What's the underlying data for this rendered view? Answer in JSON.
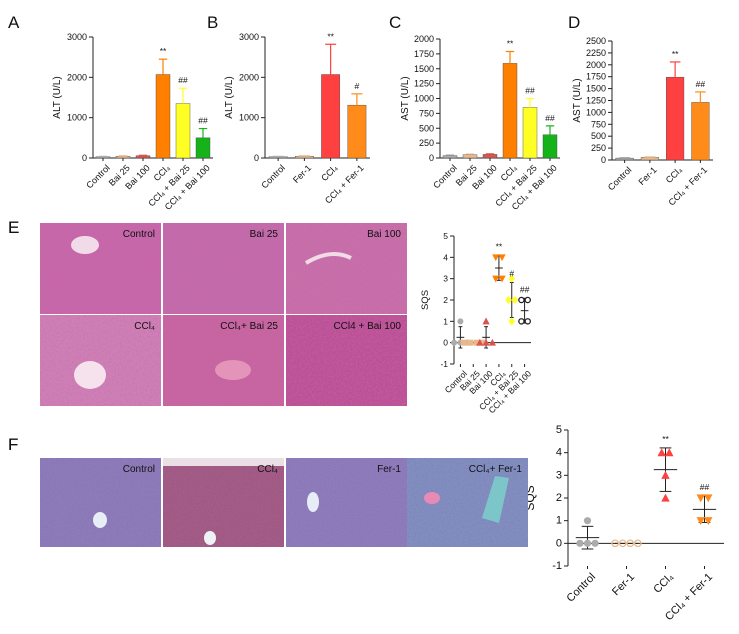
{
  "figure": {
    "colors": {
      "control": "#ababab",
      "bai25": "#e8b98e",
      "bai100": "#d9534f",
      "ccl4": "#ff7f00",
      "ccl4_bai25": "#ffff26",
      "ccl4_bai100": "#16b21a",
      "fer_ccl4": "#ff4040",
      "fer_ccl4_fer": "#ff8c1a",
      "he_stain": "#c65f9a",
      "masson_stain": "#8f79b5"
    },
    "panel_E": {
      "letter": "E",
      "images": [
        {
          "label": "Control"
        },
        {
          "label": "Bai 25"
        },
        {
          "label": "Bai 100"
        },
        {
          "label": "CCl₄"
        },
        {
          "label": "CCl₄+ Bai 25"
        },
        {
          "label": "CCl4 + Bai 100"
        }
      ]
    },
    "panel_F": {
      "letter": "F",
      "images": [
        {
          "label": "Control"
        },
        {
          "label": "CCl₄"
        },
        {
          "label": "Fer-1"
        },
        {
          "label": "CCl₄+ Fer-1"
        }
      ]
    }
  },
  "chart_data": [
    {
      "panel": "A",
      "type": "bar",
      "ylabel": "ALT (U/L)",
      "ylim": [
        0,
        3000
      ],
      "yticks": [
        0,
        1000,
        2000,
        3000
      ],
      "categories": [
        "Control",
        "Bai 25",
        "Bai 100",
        "CCl₄",
        "CCl₄ + Bai 25",
        "CCl₄ + Bai 100"
      ],
      "values": [
        30,
        45,
        55,
        2070,
        1350,
        500
      ],
      "errors": [
        10,
        10,
        12,
        380,
        380,
        230
      ],
      "annotations": [
        "",
        "",
        "",
        "**",
        "##",
        "##"
      ],
      "color_keys": [
        "control",
        "bai25",
        "bai100",
        "ccl4",
        "ccl4_bai25",
        "ccl4_bai100"
      ]
    },
    {
      "panel": "B",
      "type": "bar",
      "ylabel": "ALT (U/L)",
      "ylim": [
        0,
        3000
      ],
      "yticks": [
        0,
        1000,
        2000,
        3000
      ],
      "categories": [
        "Control",
        "Fer-1",
        "CCl₄",
        "CCl₄ + Fer-1"
      ],
      "values": [
        30,
        45,
        2070,
        1310
      ],
      "errors": [
        10,
        10,
        750,
        280
      ],
      "annotations": [
        "",
        "",
        "**",
        "#"
      ],
      "color_keys": [
        "control",
        "bai25",
        "fer_ccl4",
        "fer_ccl4_fer"
      ]
    },
    {
      "panel": "C",
      "type": "bar",
      "ylabel": "AST (U/L)",
      "ylim": [
        0,
        2000
      ],
      "yticks": [
        0,
        250,
        500,
        750,
        1000,
        1250,
        1500,
        1750,
        2000
      ],
      "categories": [
        "Control",
        "Bai 25",
        "Bai 100",
        "CCl₄",
        "CCl₄ + Bai 25",
        "CCl₄ + Bai 100"
      ],
      "values": [
        40,
        55,
        60,
        1590,
        850,
        390
      ],
      "errors": [
        10,
        10,
        10,
        200,
        150,
        150
      ],
      "annotations": [
        "",
        "",
        "",
        "**",
        "##",
        "##"
      ],
      "color_keys": [
        "control",
        "bai25",
        "bai100",
        "ccl4",
        "ccl4_bai25",
        "ccl4_bai100"
      ]
    },
    {
      "panel": "D",
      "type": "bar",
      "ylabel": "AST (U/L)",
      "ylim": [
        0,
        2500
      ],
      "yticks": [
        0,
        250,
        500,
        750,
        1000,
        1250,
        1500,
        1750,
        2000,
        2250,
        2500
      ],
      "categories": [
        "Control",
        "Fer-1",
        "CCl₄",
        "CCl₄ + Fer-1"
      ],
      "values": [
        40,
        55,
        1740,
        1210
      ],
      "errors": [
        10,
        10,
        320,
        220
      ],
      "annotations": [
        "",
        "",
        "**",
        "##"
      ],
      "color_keys": [
        "control",
        "bai25",
        "fer_ccl4",
        "fer_ccl4_fer"
      ]
    },
    {
      "panel": "E",
      "type": "scatter",
      "ylabel": "SQS",
      "ylim": [
        -1,
        5
      ],
      "yticks": [
        -1,
        0,
        1,
        2,
        3,
        4,
        5
      ],
      "categories": [
        "Control",
        "Bai 25",
        "Bai 100",
        "CCl₄",
        "CCl₄ + Bai 25",
        "CCl₄ + Bai 100"
      ],
      "points": [
        [
          1,
          0,
          0,
          0
        ],
        [
          0,
          0,
          0,
          0
        ],
        [
          1,
          0,
          0,
          0
        ],
        [
          4,
          4,
          3,
          3
        ],
        [
          3,
          2,
          2,
          1
        ],
        [
          2,
          2,
          1,
          1
        ]
      ],
      "means": [
        0.25,
        0,
        0.25,
        3.5,
        2,
        1.5
      ],
      "sds": [
        0.5,
        0,
        0.5,
        0.58,
        0.82,
        0.58
      ],
      "annotations": [
        "",
        "",
        "",
        "**",
        "#",
        "##"
      ],
      "markers": [
        "circle",
        "square",
        "triangle",
        "triangle-down",
        "diamond",
        "circle-open"
      ],
      "color_keys": [
        "control",
        "bai25",
        "bai100",
        "ccl4",
        "ccl4_bai25",
        "ccl4_bai100"
      ]
    },
    {
      "panel": "F",
      "type": "scatter",
      "ylabel": "SQS",
      "ylim": [
        -1,
        5
      ],
      "yticks": [
        -1,
        0,
        1,
        2,
        3,
        4,
        5
      ],
      "categories": [
        "Control",
        "Fer-1",
        "CCl₄",
        "CCl₄ + Fer-1"
      ],
      "points": [
        [
          1,
          0,
          0,
          0
        ],
        [
          0,
          0,
          0,
          0
        ],
        [
          4,
          4,
          3,
          2
        ],
        [
          2,
          2,
          1,
          1
        ]
      ],
      "means": [
        0.25,
        0,
        3.25,
        1.5
      ],
      "sds": [
        0.5,
        0,
        0.96,
        0.58
      ],
      "annotations": [
        "",
        "",
        "**",
        "##"
      ],
      "markers": [
        "circle",
        "circle-open",
        "triangle",
        "triangle-down"
      ],
      "color_keys": [
        "control",
        "bai25",
        "fer_ccl4",
        "fer_ccl4_fer"
      ]
    }
  ]
}
